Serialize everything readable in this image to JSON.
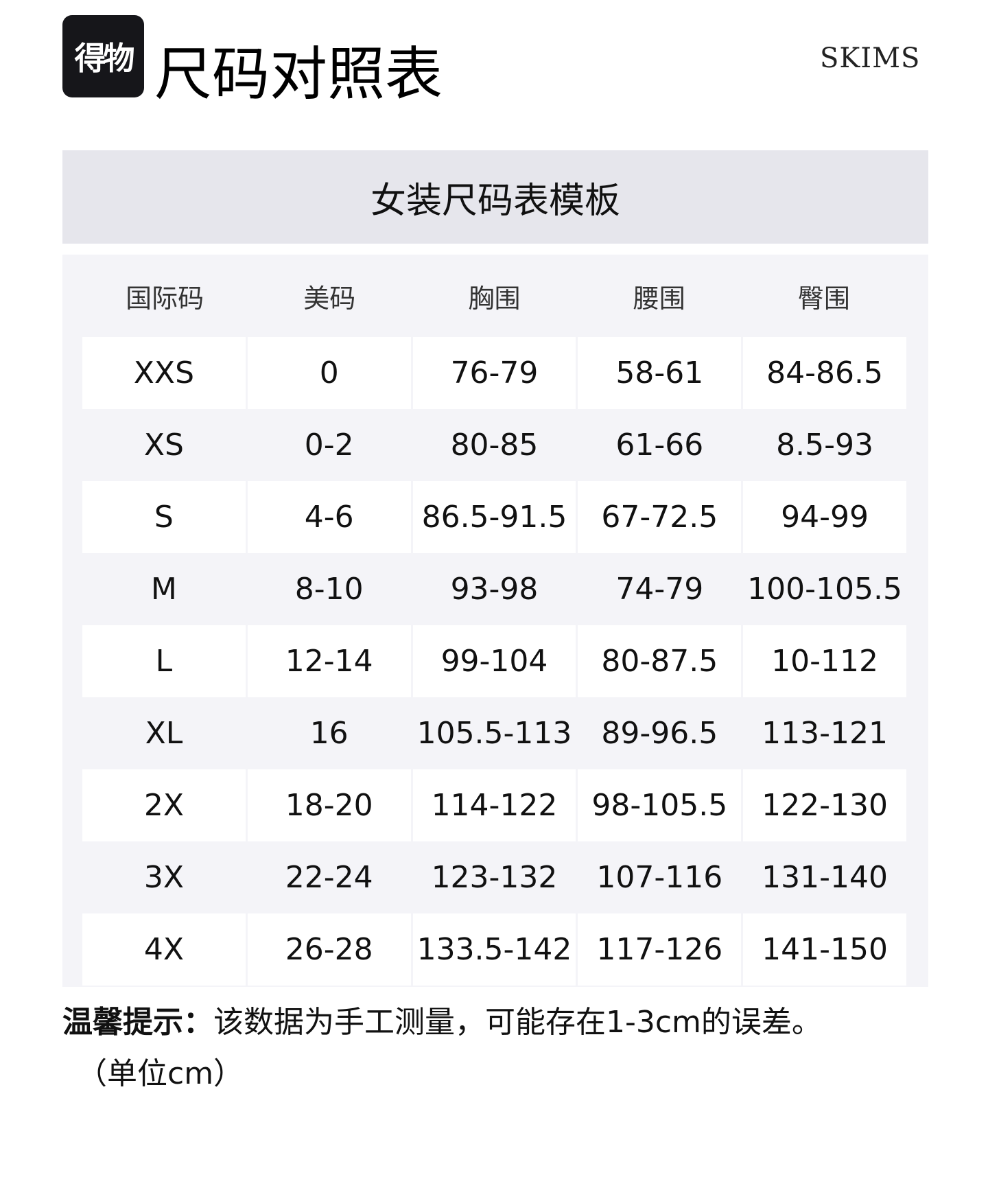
{
  "header": {
    "logo_text": "得物",
    "title": "尺码对照表",
    "brand": "SKIMS"
  },
  "banner": {
    "title": "女装尺码表模板"
  },
  "table": {
    "columns": [
      "国际码",
      "美码",
      "胸围",
      "腰围",
      "臀围"
    ],
    "rows": [
      [
        "XXS",
        "0",
        "76-79",
        "58-61",
        "84-86.5"
      ],
      [
        "XS",
        "0-2",
        "80-85",
        "61-66",
        "8.5-93"
      ],
      [
        "S",
        "4-6",
        "86.5-91.5",
        "67-72.5",
        "94-99"
      ],
      [
        "M",
        "8-10",
        "93-98",
        "74-79",
        "100-105.5"
      ],
      [
        "L",
        "12-14",
        "99-104",
        "80-87.5",
        "10-112"
      ],
      [
        "XL",
        "16",
        "105.5-113",
        "89-96.5",
        "113-121"
      ],
      [
        "2X",
        "18-20",
        "114-122",
        "98-105.5",
        "122-130"
      ],
      [
        "3X",
        "22-24",
        "123-132",
        "107-116",
        "131-140"
      ],
      [
        "4X",
        "26-28",
        "133.5-142",
        "117-126",
        "141-150"
      ]
    ]
  },
  "note": {
    "label": "温馨提示：",
    "text": "该数据为手工测量，可能存在1-3cm的误差。",
    "unit": "（单位cm）"
  }
}
